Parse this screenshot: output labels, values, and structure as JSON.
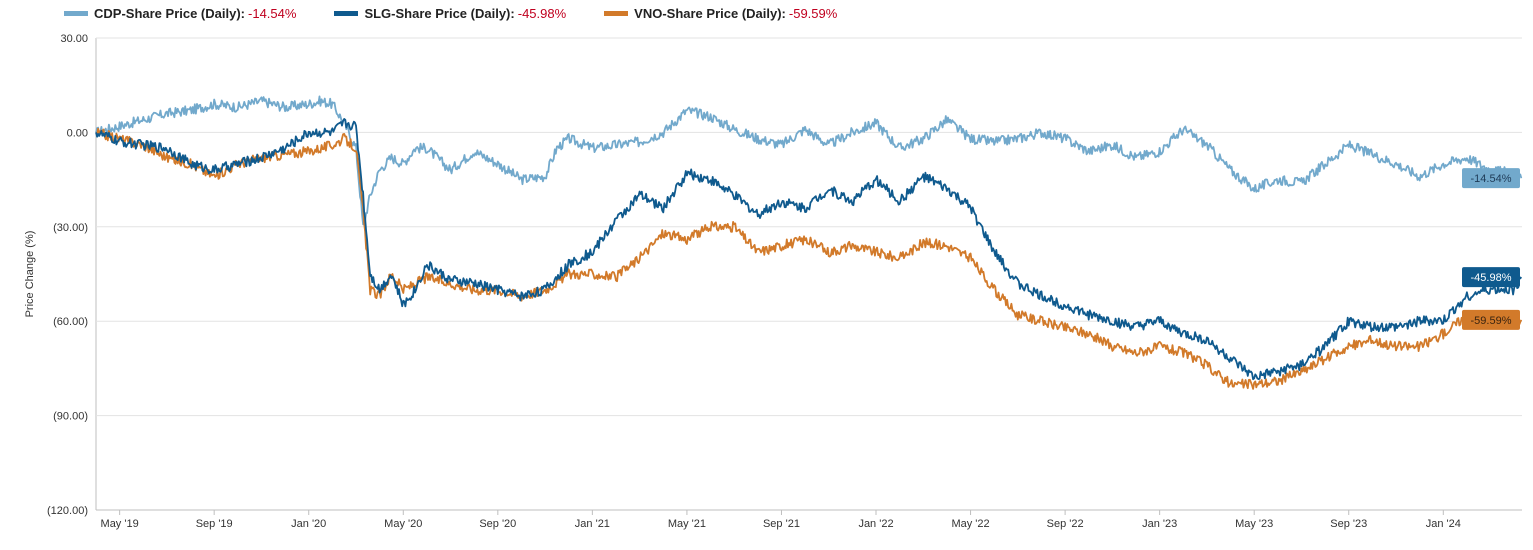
{
  "chart_data": {
    "type": "line",
    "title": "",
    "xlabel": "",
    "ylabel": "Price Change (%)",
    "ylim": [
      -120,
      30
    ],
    "yticks": [
      30,
      0,
      -30,
      -60,
      -90,
      -120
    ],
    "ytick_labels": [
      "30.00",
      "0.00",
      "(30.00)",
      "(60.00)",
      "(90.00)",
      "(120.00)"
    ],
    "x_start": "2019-04",
    "x_end": "2024-04-10",
    "xtick_labels": [
      "May '19",
      "Sep '19",
      "Jan '20",
      "May '20",
      "Sep '20",
      "Jan '21",
      "May '21",
      "Sep '21",
      "Jan '22",
      "May '22",
      "Sep '22",
      "Jan '23",
      "May '23",
      "Sep '23",
      "Jan '24"
    ],
    "xtick_months": [
      1,
      5,
      9,
      13,
      17,
      21,
      25,
      29,
      33,
      37,
      41,
      45,
      49,
      53,
      57
    ],
    "grid": true,
    "series": [
      {
        "name": "CDP-Share Price (Daily)",
        "final": "-14.54%",
        "color": "#72a9cc",
        "label_text_color": "#1f3b57",
        "x": [
          0,
          0.5,
          1,
          2,
          3,
          4,
          5,
          6,
          7,
          8,
          9,
          9.5,
          10,
          10.5,
          11,
          11.3,
          11.6,
          12,
          12.5,
          13,
          13.5,
          14,
          15,
          16,
          17,
          18,
          19,
          19.5,
          20,
          21,
          22,
          23,
          24,
          25,
          26,
          27,
          28,
          29,
          30,
          31,
          32,
          33,
          34,
          35,
          36,
          37,
          38,
          39,
          40,
          41,
          42,
          43,
          44,
          45,
          46,
          47,
          48,
          49,
          50,
          51,
          52,
          53,
          54,
          55,
          56,
          57,
          58,
          59,
          60,
          60.3
        ],
        "values": [
          0,
          1,
          2,
          4,
          6,
          7,
          9,
          8,
          10,
          8,
          9,
          10,
          9,
          3,
          -5,
          -30,
          -20,
          -12,
          -8,
          -10,
          -5,
          -5,
          -12,
          -6,
          -10,
          -15,
          -14,
          -5,
          -2,
          -5,
          -4,
          -3,
          0,
          7,
          5,
          1,
          -2,
          -4,
          1,
          -4,
          0,
          3,
          -5,
          -2,
          4,
          -2,
          -3,
          -2,
          0,
          -2,
          -6,
          -4,
          -8,
          -6,
          1,
          -4,
          -12,
          -18,
          -15,
          -16,
          -10,
          -4,
          -7,
          -10,
          -14,
          -10,
          -8,
          -12,
          -13,
          -14.54
        ]
      },
      {
        "name": "SLG-Share Price (Daily)",
        "final": "-45.98%",
        "color": "#0f5a8e",
        "label_text_color": "#ffffff",
        "x": [
          0,
          1,
          2,
          3,
          4,
          5,
          6,
          7,
          8,
          9,
          10,
          10.5,
          11,
          11.3,
          11.6,
          12,
          12.5,
          13,
          13.5,
          14,
          15,
          16,
          17,
          18,
          19,
          20,
          21,
          22,
          23,
          24,
          25,
          26,
          27,
          28,
          29,
          30,
          31,
          32,
          33,
          34,
          35,
          36,
          37,
          38,
          39,
          40,
          41,
          42,
          43,
          44,
          45,
          46,
          47,
          48,
          49,
          50,
          51,
          52,
          53,
          54,
          55,
          56,
          57,
          58,
          59,
          60,
          60.3
        ],
        "values": [
          0,
          -3,
          -4,
          -5,
          -10,
          -12,
          -10,
          -8,
          -5,
          0,
          0,
          3,
          2,
          -20,
          -45,
          -50,
          -45,
          -55,
          -50,
          -42,
          -47,
          -48,
          -50,
          -52,
          -50,
          -42,
          -38,
          -28,
          -20,
          -24,
          -13,
          -15,
          -20,
          -26,
          -22,
          -24,
          -18,
          -22,
          -15,
          -22,
          -14,
          -18,
          -24,
          -38,
          -48,
          -52,
          -55,
          -58,
          -60,
          -62,
          -60,
          -64,
          -66,
          -72,
          -78,
          -76,
          -74,
          -68,
          -60,
          -62,
          -62,
          -60,
          -60,
          -52,
          -50,
          -50,
          -45.98
        ]
      },
      {
        "name": "VNO-Share Price (Daily)",
        "final": "-59.59%",
        "color": "#d27a2a",
        "label_text_color": "#3a2410",
        "x": [
          0,
          1,
          2,
          3,
          4,
          5,
          6,
          7,
          8,
          9,
          10,
          10.5,
          11,
          11.3,
          11.6,
          12,
          12.5,
          13,
          13.5,
          14,
          15,
          16,
          17,
          18,
          19,
          20,
          21,
          22,
          23,
          24,
          25,
          26,
          27,
          28,
          29,
          30,
          31,
          32,
          33,
          34,
          35,
          36,
          37,
          38,
          39,
          40,
          41,
          42,
          43,
          44,
          45,
          46,
          47,
          48,
          49,
          50,
          51,
          52,
          53,
          54,
          55,
          56,
          57,
          58,
          59,
          60,
          60.3
        ],
        "values": [
          0,
          -2,
          -4,
          -8,
          -10,
          -14,
          -10,
          -8,
          -7,
          -6,
          -4,
          -2,
          -5,
          -25,
          -50,
          -52,
          -45,
          -50,
          -48,
          -46,
          -48,
          -50,
          -50,
          -52,
          -50,
          -45,
          -45,
          -46,
          -40,
          -32,
          -34,
          -30,
          -30,
          -38,
          -36,
          -34,
          -38,
          -36,
          -38,
          -40,
          -35,
          -36,
          -40,
          -50,
          -58,
          -60,
          -62,
          -64,
          -68,
          -70,
          -68,
          -70,
          -74,
          -80,
          -80,
          -79,
          -76,
          -72,
          -68,
          -66,
          -68,
          -68,
          -64,
          -58,
          -60,
          -60,
          -59.59
        ]
      }
    ]
  }
}
